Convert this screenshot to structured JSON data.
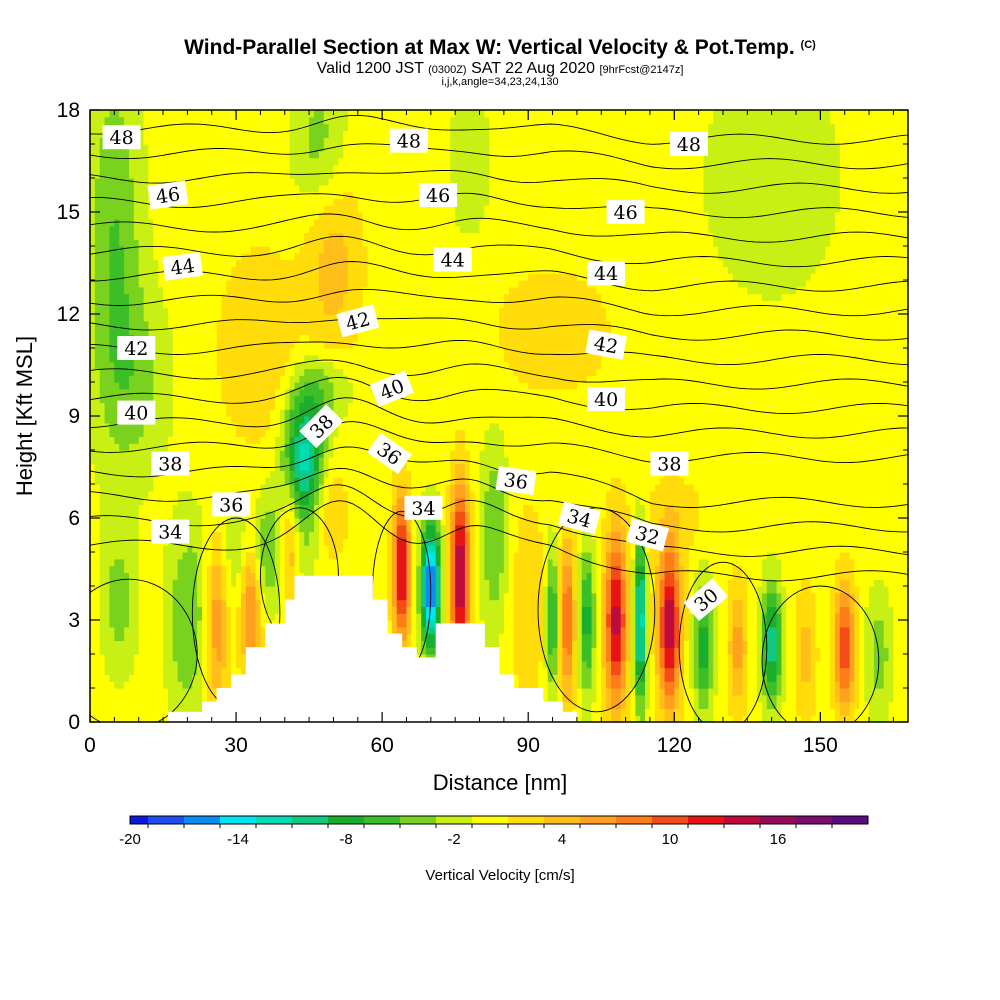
{
  "title": {
    "main": "Wind-Parallel Section at Max W: Vertical Velocity & Pot.Temp.",
    "copyright": "(C)",
    "valid_prefix": "Valid 1200 JST",
    "valid_utc": "(0300Z)",
    "valid_date": "SAT 22 Aug 2020",
    "forecast": "[9hrFcst@2147z]",
    "indices": "i,j,k,angle=34,23,24,130"
  },
  "chart_data": {
    "type": "heatmap",
    "xlabel": "Distance [nm]",
    "ylabel": "Height [Kft MSL]",
    "xlim": [
      0,
      168
    ],
    "ylim": [
      0,
      18
    ],
    "xticks": [
      0,
      30,
      60,
      90,
      120,
      150
    ],
    "yticks": [
      0,
      3,
      6,
      9,
      12,
      15,
      18
    ],
    "colorbar": {
      "label": "Vertical Velocity [cm/s]",
      "ticks": [
        "-20",
        "-14",
        "-8",
        "-2",
        "4",
        "10",
        "16"
      ],
      "tick_positions": [
        -20,
        -14,
        -8,
        -2,
        4,
        10,
        16
      ],
      "bins": [
        {
          "lo": -20,
          "hi": -19,
          "color": "#0a18e0"
        },
        {
          "lo": -19,
          "hi": -17,
          "color": "#1e4ef2"
        },
        {
          "lo": -17,
          "hi": -15,
          "color": "#0a8cf5"
        },
        {
          "lo": -15,
          "hi": -13,
          "color": "#00e6f0"
        },
        {
          "lo": -13,
          "hi": -11,
          "color": "#00dcb4"
        },
        {
          "lo": -11,
          "hi": -9,
          "color": "#0fc882"
        },
        {
          "lo": -9,
          "hi": -7,
          "color": "#19af2d"
        },
        {
          "lo": -7,
          "hi": -5,
          "color": "#3cbe28"
        },
        {
          "lo": -5,
          "hi": -3,
          "color": "#78d21e"
        },
        {
          "lo": -3,
          "hi": -1,
          "color": "#c8f014"
        },
        {
          "lo": -1,
          "hi": 1,
          "color": "#ffff00"
        },
        {
          "lo": 1,
          "hi": 3,
          "color": "#ffdc0a"
        },
        {
          "lo": 3,
          "hi": 5,
          "color": "#ffbe19"
        },
        {
          "lo": 5,
          "hi": 7,
          "color": "#ffa01e"
        },
        {
          "lo": 7,
          "hi": 9,
          "color": "#ff7d19"
        },
        {
          "lo": 9,
          "hi": 11,
          "color": "#f54b19"
        },
        {
          "lo": 11,
          "hi": 13,
          "color": "#e61414"
        },
        {
          "lo": 13,
          "hi": 15,
          "color": "#be0a3c"
        },
        {
          "lo": 15,
          "hi": 17,
          "color": "#960a5a"
        },
        {
          "lo": 17,
          "hi": 19,
          "color": "#7d0a6e"
        },
        {
          "lo": 19,
          "hi": 21,
          "color": "#5a0a82"
        }
      ]
    },
    "velocity_features": [
      {
        "x": 5,
        "y": 14.0,
        "sx": 4,
        "sy": 4.0,
        "amp": -5
      },
      {
        "x": 10,
        "y": 10.0,
        "sx": 5,
        "sy": 2.0,
        "amp": -3
      },
      {
        "x": 47,
        "y": 17.0,
        "sx": 4,
        "sy": 1.5,
        "amp": -4
      },
      {
        "x": 78,
        "y": 16.5,
        "sx": 3,
        "sy": 1.5,
        "amp": -3
      },
      {
        "x": 140,
        "y": 16.0,
        "sx": 12,
        "sy": 3.0,
        "amp": -2
      },
      {
        "x": 35,
        "y": 11.0,
        "sx": 6,
        "sy": 2.0,
        "amp": 3
      },
      {
        "x": 50,
        "y": 13.5,
        "sx": 4,
        "sy": 2.0,
        "amp": 4
      },
      {
        "x": 95,
        "y": 11.5,
        "sx": 10,
        "sy": 1.5,
        "amp": 2
      },
      {
        "x": 44,
        "y": 7.8,
        "sx": 3.0,
        "sy": 1.4,
        "amp": -12
      },
      {
        "x": 36,
        "y": 5.0,
        "sx": 6.0,
        "sy": 1.2,
        "amp": -5
      },
      {
        "x": 48,
        "y": 9.8,
        "sx": 4.0,
        "sy": 0.7,
        "amp": -4
      },
      {
        "x": 20,
        "y": 3.0,
        "sx": 3.0,
        "sy": 2.0,
        "amp": -5
      },
      {
        "x": 6,
        "y": 3.5,
        "sx": 2.5,
        "sy": 1.5,
        "amp": -4
      },
      {
        "x": 26,
        "y": 3.0,
        "sx": 1.6,
        "sy": 1.8,
        "amp": 7
      },
      {
        "x": 33,
        "y": 3.6,
        "sx": 1.5,
        "sy": 1.5,
        "amp": 9
      },
      {
        "x": 41,
        "y": 5.2,
        "sx": 1.5,
        "sy": 1.2,
        "amp": 8
      },
      {
        "x": 49,
        "y": 6.2,
        "sx": 2.5,
        "sy": 1.0,
        "amp": 4
      },
      {
        "x": 64,
        "y": 4.5,
        "sx": 1.2,
        "sy": 1.5,
        "amp": 14
      },
      {
        "x": 70,
        "y": 4.0,
        "sx": 1.4,
        "sy": 1.3,
        "amp": -18
      },
      {
        "x": 76,
        "y": 4.3,
        "sx": 1.4,
        "sy": 1.8,
        "amp": 16
      },
      {
        "x": 83,
        "y": 5.5,
        "sx": 2.0,
        "sy": 2.0,
        "amp": -5
      },
      {
        "x": 90,
        "y": 3.5,
        "sx": 2.5,
        "sy": 2.0,
        "amp": 3
      },
      {
        "x": 95,
        "y": 3.0,
        "sx": 1.0,
        "sy": 1.5,
        "amp": -8
      },
      {
        "x": 98,
        "y": 3.0,
        "sx": 1.2,
        "sy": 1.7,
        "amp": 9
      },
      {
        "x": 102,
        "y": 3.0,
        "sx": 1.2,
        "sy": 1.5,
        "amp": -8
      },
      {
        "x": 108,
        "y": 3.0,
        "sx": 1.6,
        "sy": 1.8,
        "amp": 14
      },
      {
        "x": 113,
        "y": 3.0,
        "sx": 0.9,
        "sy": 1.8,
        "amp": -13
      },
      {
        "x": 119,
        "y": 2.8,
        "sx": 1.6,
        "sy": 1.6,
        "amp": 15
      },
      {
        "x": 126,
        "y": 2.2,
        "sx": 1.4,
        "sy": 1.4,
        "amp": -8
      },
      {
        "x": 133,
        "y": 2.2,
        "sx": 1.3,
        "sy": 1.3,
        "amp": 6
      },
      {
        "x": 140,
        "y": 2.3,
        "sx": 1.5,
        "sy": 1.3,
        "amp": -10
      },
      {
        "x": 147,
        "y": 2.0,
        "sx": 1.5,
        "sy": 1.3,
        "amp": 4
      },
      {
        "x": 155,
        "y": 2.2,
        "sx": 1.5,
        "sy": 1.3,
        "amp": 11
      },
      {
        "x": 162,
        "y": 2.0,
        "sx": 2.0,
        "sy": 1.3,
        "amp": -4
      },
      {
        "x": 120,
        "y": 6.0,
        "sx": 5.0,
        "sy": 1.0,
        "amp": 2
      }
    ],
    "terrain": [
      {
        "x0": 16,
        "x1": 23,
        "h": 0.3
      },
      {
        "x0": 23,
        "x1": 26,
        "h": 0.6
      },
      {
        "x0": 26,
        "x1": 29,
        "h": 1.0
      },
      {
        "x0": 29,
        "x1": 32,
        "h": 1.4
      },
      {
        "x0": 32,
        "x1": 36,
        "h": 2.2
      },
      {
        "x0": 36,
        "x1": 40,
        "h": 2.9
      },
      {
        "x0": 40,
        "x1": 42,
        "h": 3.6
      },
      {
        "x0": 42,
        "x1": 58,
        "h": 4.3
      },
      {
        "x0": 58,
        "x1": 61,
        "h": 3.6
      },
      {
        "x0": 61,
        "x1": 64,
        "h": 2.6
      },
      {
        "x0": 64,
        "x1": 67,
        "h": 2.2
      },
      {
        "x0": 67,
        "x1": 71,
        "h": 1.9
      },
      {
        "x0": 71,
        "x1": 81,
        "h": 2.9
      },
      {
        "x0": 81,
        "x1": 84,
        "h": 2.2
      },
      {
        "x0": 84,
        "x1": 87,
        "h": 1.4
      },
      {
        "x0": 87,
        "x1": 93,
        "h": 1.0
      },
      {
        "x0": 93,
        "x1": 97,
        "h": 0.6
      },
      {
        "x0": 97,
        "x1": 100,
        "h": 0.3
      }
    ],
    "pot_temp_contours": {
      "label": "Pot.Temp.",
      "labels": [
        {
          "text": "48",
          "x": 6.5,
          "y": 17.2,
          "angle": 0
        },
        {
          "text": "48",
          "x": 65.5,
          "y": 17.1,
          "angle": 0
        },
        {
          "text": "48",
          "x": 123,
          "y": 17.0,
          "angle": 0
        },
        {
          "text": "46",
          "x": 16,
          "y": 15.5,
          "angle": -8
        },
        {
          "text": "46",
          "x": 71.5,
          "y": 15.5,
          "angle": 0
        },
        {
          "text": "46",
          "x": 110,
          "y": 15.0,
          "angle": 0
        },
        {
          "text": "44",
          "x": 19,
          "y": 13.4,
          "angle": -8
        },
        {
          "text": "44",
          "x": 74.5,
          "y": 13.6,
          "angle": 0
        },
        {
          "text": "44",
          "x": 106,
          "y": 13.2,
          "angle": 0
        },
        {
          "text": "42",
          "x": 9.5,
          "y": 11.0,
          "angle": 0
        },
        {
          "text": "42",
          "x": 55,
          "y": 11.8,
          "angle": -15
        },
        {
          "text": "42",
          "x": 106,
          "y": 11.1,
          "angle": 10
        },
        {
          "text": "40",
          "x": 9.5,
          "y": 9.1,
          "angle": 0
        },
        {
          "text": "40",
          "x": 62,
          "y": 9.8,
          "angle": -22
        },
        {
          "text": "40",
          "x": 106,
          "y": 9.5,
          "angle": 0
        },
        {
          "text": "38",
          "x": 16.5,
          "y": 7.6,
          "angle": 0
        },
        {
          "text": "38",
          "x": 47.5,
          "y": 8.7,
          "angle": -45
        },
        {
          "text": "38",
          "x": 119,
          "y": 7.6,
          "angle": 0
        },
        {
          "text": "36",
          "x": 29,
          "y": 6.4,
          "angle": 0
        },
        {
          "text": "36",
          "x": 61.5,
          "y": 7.9,
          "angle": 35
        },
        {
          "text": "36",
          "x": 87.5,
          "y": 7.1,
          "angle": 8
        },
        {
          "text": "34",
          "x": 16.5,
          "y": 5.6,
          "angle": 0
        },
        {
          "text": "34",
          "x": 68.5,
          "y": 6.3,
          "angle": 0
        },
        {
          "text": "34",
          "x": 100.5,
          "y": 6.0,
          "angle": 15
        },
        {
          "text": "32",
          "x": 114.5,
          "y": 5.5,
          "angle": 15
        },
        {
          "text": "30",
          "x": 126.5,
          "y": 3.6,
          "angle": -40
        }
      ]
    }
  }
}
